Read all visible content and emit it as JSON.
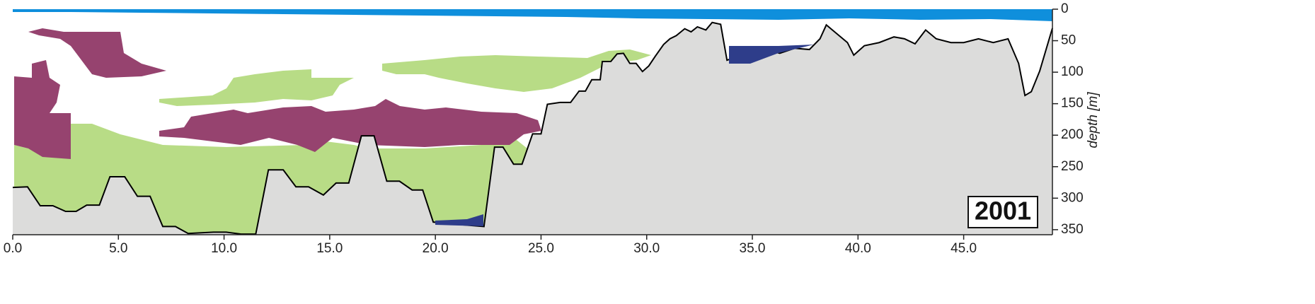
{
  "chart_data": {
    "type": "area",
    "y_label": "depth [m]",
    "annotation": "2001",
    "y_inverted": true,
    "color": "#000000",
    "fill": "#dcdcdb",
    "x": [
      0,
      0.7,
      1.3,
      1.9,
      2.5,
      3,
      3.5,
      4.1,
      4.6,
      5.3,
      5.9,
      6.5,
      7.1,
      7.7,
      8.3,
      9.5,
      10.1,
      10.8,
      11.5,
      12.1,
      12.8,
      13.4,
      14,
      14.7,
      15.3,
      15.9,
      16.5,
      17.1,
      17.7,
      18.3,
      18.9,
      19.4,
      19.9,
      21.2,
      22.3,
      22.8,
      23.2,
      23.7,
      24.1,
      24.6,
      25,
      25.3,
      25.9,
      26.4,
      26.8,
      27.1,
      27.4,
      27.8,
      27.9,
      28.3,
      28.6,
      28.9,
      29.2,
      29.5,
      29.8,
      30.1,
      30.4,
      30.8,
      31.1,
      31.4,
      31.8,
      32.1,
      32.4,
      32.8,
      33.1,
      33.5,
      33.8,
      34.3,
      35,
      35.6,
      36.3,
      37,
      37.7,
      38.2,
      38.5,
      39,
      39.5,
      39.8,
      40.3,
      41,
      41.7,
      42.2,
      42.7,
      43.2,
      43.7,
      44.4,
      45,
      45.7,
      46.4,
      47.1,
      47.6,
      47.9,
      48.2,
      48.6,
      48.9,
      49.2
    ],
    "values": [
      283,
      282,
      312,
      312,
      321,
      321,
      311,
      311,
      266,
      266,
      297,
      297,
      345,
      345,
      356,
      354,
      354,
      357,
      357,
      255,
      255,
      282,
      282,
      295,
      276,
      276,
      201,
      201,
      273,
      273,
      287,
      287,
      338,
      342,
      345,
      219,
      219,
      246,
      246,
      198,
      198,
      151,
      148,
      148,
      130,
      130,
      112,
      112,
      83,
      83,
      71,
      70,
      86,
      86,
      99,
      90,
      75,
      56,
      47,
      42,
      31,
      36,
      28,
      33,
      21,
      24,
      81,
      75,
      81,
      64,
      70,
      62,
      64,
      47,
      25,
      39,
      53,
      73,
      58,
      53,
      44,
      47,
      55,
      33,
      47,
      53,
      53,
      47,
      53,
      47,
      86,
      137,
      131,
      98,
      64,
      30
    ],
    "xlim": [
      0,
      49.2
    ],
    "ylim": [
      0,
      358
    ],
    "xticks": [
      {
        "value": 0,
        "label": "0.0"
      },
      {
        "value": 5,
        "label": "5.0"
      },
      {
        "value": 10,
        "label": "10.0"
      },
      {
        "value": 15,
        "label": "15.0"
      },
      {
        "value": 20,
        "label": "20.0"
      },
      {
        "value": 25,
        "label": "25.0"
      },
      {
        "value": 30,
        "label": "30.0"
      },
      {
        "value": 35,
        "label": "35.0"
      },
      {
        "value": 40,
        "label": "40.0"
      },
      {
        "value": 45,
        "label": "45.0"
      }
    ],
    "yticks": [
      0,
      50,
      100,
      150,
      200,
      250,
      300,
      350
    ]
  }
}
